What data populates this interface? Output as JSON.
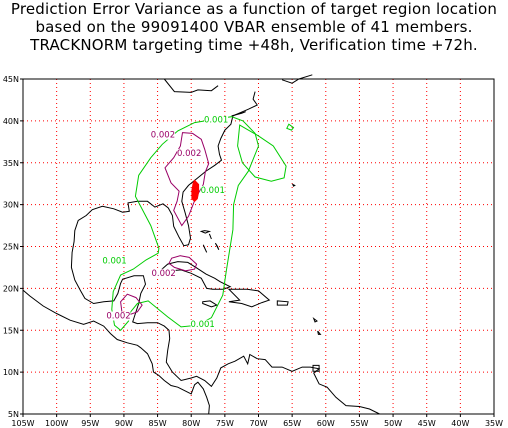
{
  "title": {
    "line1": "Prediction Error Variance as a function of target region location",
    "line2": "based on the 99091400 VBAR ensemble of 41 members.",
    "line3": "TRACKNORM targeting time +48h, Verification time +72h."
  },
  "map": {
    "lon_range": [
      -105,
      -35
    ],
    "lat_range": [
      5,
      45
    ],
    "lon_ticks": [
      "105W",
      "100W",
      "95W",
      "90W",
      "85W",
      "80W",
      "75W",
      "70W",
      "65W",
      "60W",
      "55W",
      "50W",
      "45W",
      "40W",
      "35W"
    ],
    "lat_ticks": [
      "5N",
      "10N",
      "15N",
      "20N",
      "25N",
      "30N",
      "35N",
      "40N",
      "45N"
    ],
    "grid": "dotted red, every 5 degrees",
    "colors": {
      "grid": "#ff0000",
      "coast": "#000000",
      "contour_001": "#00cc00",
      "contour_002": "#990066",
      "max_region": "#ff0000"
    }
  },
  "contours": [
    {
      "level": "0.001",
      "color": "#00cc00"
    },
    {
      "level": "0.002",
      "color": "#990066"
    }
  ],
  "contour_labels": [
    {
      "text": "0.001",
      "lon": -76.3,
      "lat": 39.8,
      "color": "#00cc00"
    },
    {
      "text": "0.001",
      "lon": -76.8,
      "lat": 31.4,
      "color": "#00cc00"
    },
    {
      "text": "0.001",
      "lon": -91.4,
      "lat": 23.0,
      "color": "#00cc00"
    },
    {
      "text": "0.001",
      "lon": -78.3,
      "lat": 15.4,
      "color": "#00cc00"
    },
    {
      "text": "0.002",
      "lon": -84.2,
      "lat": 38.0,
      "color": "#990066"
    },
    {
      "text": "0.002",
      "lon": -80.3,
      "lat": 35.8,
      "color": "#990066"
    },
    {
      "text": "0.002",
      "lon": -84.1,
      "lat": 21.5,
      "color": "#990066"
    },
    {
      "text": "0.002",
      "lon": -90.8,
      "lat": 16.4,
      "color": "#990066"
    }
  ]
}
